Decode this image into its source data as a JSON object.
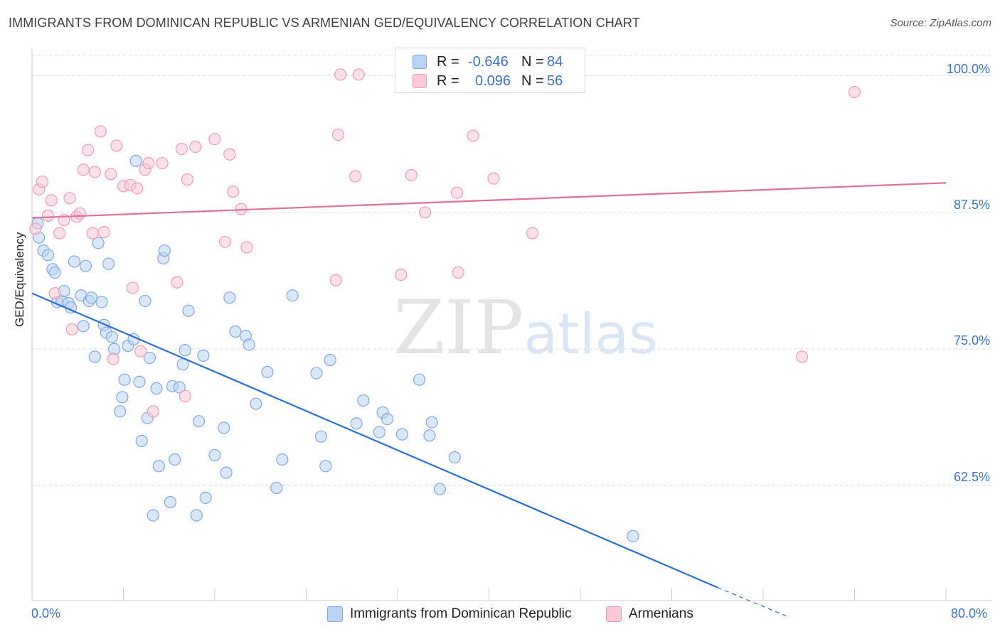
{
  "title": "IMMIGRANTS FROM DOMINICAN REPUBLIC VS ARMENIAN GED/EQUIVALENCY CORRELATION CHART",
  "source": "Source: ZipAtlas.com",
  "watermark": {
    "main": "ZIP",
    "accent": "atlas"
  },
  "legend": {
    "rows": [
      {
        "r_label": "R =",
        "r_value": "-0.646",
        "n_label": "N =",
        "n_value": "84",
        "color": "#a9c8f0"
      },
      {
        "r_label": "R =",
        "r_value": "0.096",
        "n_label": "N =",
        "n_value": "56",
        "color": "#f7b6c8"
      }
    ]
  },
  "chart_data": {
    "type": "scatter",
    "title": "IMMIGRANTS FROM DOMINICAN REPUBLIC VS ARMENIAN GED/EQUIVALENCY CORRELATION CHART",
    "xlabel": "",
    "ylabel": "GED/Equivalency",
    "xlim": [
      0,
      80
    ],
    "ylim": [
      52.0,
      102.5
    ],
    "x_tick_labels": [
      "0.0%",
      "80.0%"
    ],
    "y_ticks": [
      62.5,
      75.0,
      87.5,
      100.0
    ],
    "y_tick_labels": [
      "62.5%",
      "75.0%",
      "87.5%",
      "100.0%"
    ],
    "grid": true,
    "legend_position": "bottom",
    "series": [
      {
        "name": "Immigrants from Dominican Republic",
        "color": "#7fa9e6",
        "fill": "#b9d3f4",
        "line_color": "#2a6fd6",
        "trend": {
          "x0": 0,
          "y0": 80.1,
          "x1": 60.0,
          "y1": 53.2,
          "dash_to_x": 66.0,
          "dash_to_y": 50.6
        },
        "points": [
          [
            0.5,
            86.5
          ],
          [
            0.6,
            85.2
          ],
          [
            1.0,
            84.0
          ],
          [
            1.4,
            83.6
          ],
          [
            1.8,
            82.3
          ],
          [
            2.0,
            82.0
          ],
          [
            2.2,
            79.3
          ],
          [
            2.6,
            79.4
          ],
          [
            2.8,
            80.3
          ],
          [
            3.2,
            79.2
          ],
          [
            3.4,
            78.8
          ],
          [
            3.7,
            83.0
          ],
          [
            4.3,
            79.9
          ],
          [
            4.5,
            77.1
          ],
          [
            4.7,
            82.6
          ],
          [
            5.0,
            79.4
          ],
          [
            5.2,
            79.7
          ],
          [
            5.5,
            74.3
          ],
          [
            5.8,
            84.7
          ],
          [
            6.1,
            79.3
          ],
          [
            6.3,
            77.2
          ],
          [
            6.5,
            76.5
          ],
          [
            6.7,
            82.8
          ],
          [
            7.0,
            76.1
          ],
          [
            7.2,
            75.0
          ],
          [
            7.7,
            69.3
          ],
          [
            7.9,
            70.6
          ],
          [
            8.1,
            72.2
          ],
          [
            8.4,
            75.3
          ],
          [
            8.9,
            75.9
          ],
          [
            9.1,
            92.2
          ],
          [
            9.4,
            72.0
          ],
          [
            9.6,
            66.6
          ],
          [
            9.9,
            79.4
          ],
          [
            10.1,
            68.7
          ],
          [
            10.3,
            74.2
          ],
          [
            10.6,
            59.8
          ],
          [
            10.9,
            71.4
          ],
          [
            11.1,
            64.3
          ],
          [
            11.5,
            83.3
          ],
          [
            11.6,
            84.0
          ],
          [
            12.1,
            61.0
          ],
          [
            12.3,
            71.6
          ],
          [
            12.5,
            64.9
          ],
          [
            12.9,
            71.5
          ],
          [
            13.2,
            73.6
          ],
          [
            13.4,
            74.9
          ],
          [
            13.7,
            78.5
          ],
          [
            14.4,
            59.8
          ],
          [
            14.6,
            68.4
          ],
          [
            15.0,
            74.4
          ],
          [
            15.2,
            61.4
          ],
          [
            16.0,
            65.3
          ],
          [
            16.8,
            67.8
          ],
          [
            17.0,
            63.7
          ],
          [
            17.3,
            79.7
          ],
          [
            17.8,
            76.6
          ],
          [
            18.7,
            76.2
          ],
          [
            19.0,
            75.4
          ],
          [
            19.6,
            70.0
          ],
          [
            20.6,
            72.9
          ],
          [
            21.4,
            62.3
          ],
          [
            21.9,
            64.9
          ],
          [
            22.8,
            79.9
          ],
          [
            24.9,
            72.8
          ],
          [
            25.3,
            67.0
          ],
          [
            25.7,
            64.3
          ],
          [
            26.1,
            74.0
          ],
          [
            28.4,
            68.2
          ],
          [
            29.0,
            70.3
          ],
          [
            30.4,
            67.4
          ],
          [
            30.7,
            69.2
          ],
          [
            31.1,
            68.6
          ],
          [
            32.4,
            67.2
          ],
          [
            33.9,
            72.2
          ],
          [
            34.8,
            67.1
          ],
          [
            35.0,
            68.3
          ],
          [
            35.7,
            62.2
          ],
          [
            37.0,
            65.1
          ],
          [
            52.6,
            57.9
          ]
        ]
      },
      {
        "name": "Armenians",
        "color": "#f19bb5",
        "fill": "#f9c9d7",
        "line_color": "#e0709a",
        "trend": {
          "x0": 0,
          "y0": 87.0,
          "x1": 80.0,
          "y1": 90.2
        },
        "points": [
          [
            0.3,
            86.0
          ],
          [
            0.6,
            89.6
          ],
          [
            0.9,
            90.3
          ],
          [
            1.4,
            87.2
          ],
          [
            1.7,
            88.6
          ],
          [
            2.0,
            80.1
          ],
          [
            2.4,
            85.6
          ],
          [
            2.8,
            86.8
          ],
          [
            3.3,
            88.8
          ],
          [
            3.5,
            76.8
          ],
          [
            3.9,
            87.1
          ],
          [
            4.2,
            87.4
          ],
          [
            4.5,
            91.4
          ],
          [
            4.9,
            93.2
          ],
          [
            5.3,
            85.6
          ],
          [
            5.5,
            91.2
          ],
          [
            6.0,
            94.9
          ],
          [
            6.3,
            85.7
          ],
          [
            6.9,
            91.0
          ],
          [
            7.1,
            74.1
          ],
          [
            7.4,
            93.6
          ],
          [
            8.0,
            89.9
          ],
          [
            8.6,
            90.0
          ],
          [
            8.8,
            80.6
          ],
          [
            9.2,
            89.7
          ],
          [
            9.5,
            74.8
          ],
          [
            9.9,
            91.4
          ],
          [
            10.2,
            92.0
          ],
          [
            10.6,
            69.3
          ],
          [
            11.4,
            92.0
          ],
          [
            12.7,
            81.1
          ],
          [
            13.1,
            93.3
          ],
          [
            13.4,
            70.7
          ],
          [
            13.6,
            90.5
          ],
          [
            14.3,
            93.5
          ],
          [
            16.0,
            94.2
          ],
          [
            16.9,
            84.8
          ],
          [
            17.3,
            92.8
          ],
          [
            17.6,
            89.4
          ],
          [
            18.3,
            87.8
          ],
          [
            18.8,
            84.3
          ],
          [
            26.6,
            81.3
          ],
          [
            26.8,
            94.6
          ],
          [
            27.0,
            100.1
          ],
          [
            28.3,
            90.8
          ],
          [
            28.6,
            100.1
          ],
          [
            32.3,
            81.8
          ],
          [
            33.2,
            90.9
          ],
          [
            34.4,
            87.5
          ],
          [
            37.2,
            89.3
          ],
          [
            37.3,
            82.0
          ],
          [
            38.6,
            94.5
          ],
          [
            40.4,
            90.6
          ],
          [
            43.8,
            85.6
          ],
          [
            67.4,
            74.3
          ],
          [
            72.0,
            98.5
          ]
        ]
      }
    ]
  },
  "bottom_legend": [
    {
      "label": "Immigrants from Dominican Republic",
      "color": "#a9c8f0"
    },
    {
      "label": "Armenians",
      "color": "#f7b6c8"
    }
  ]
}
